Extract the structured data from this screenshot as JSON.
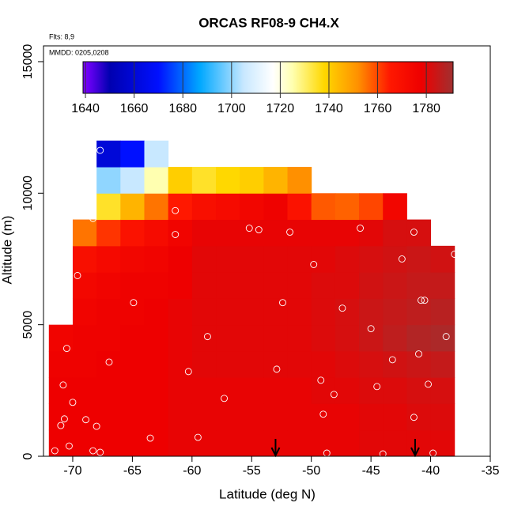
{
  "chart_data": {
    "type": "heatmap",
    "title": "ORCAS RF08-9 CH4.X",
    "note_flights": "Flts: 8,9",
    "note_dates": "MMDD: 0205,0208",
    "x_label": "Latitude (deg N)",
    "y_label": "Altitude (m)",
    "xlim": [
      -72.45,
      -35
    ],
    "ylim": [
      0,
      15600
    ],
    "xticks": [
      -70,
      -65,
      -60,
      -55,
      -50,
      -45,
      -40,
      -35
    ],
    "yticks": [
      0,
      5000,
      10000,
      15000
    ],
    "x_edges": [
      -72,
      -70,
      -68,
      -66,
      -64,
      -62,
      -60,
      -58,
      -56,
      -54,
      -52,
      -50,
      -48,
      -46,
      -44,
      -42,
      -40,
      -38
    ],
    "y_edges": [
      0,
      1000,
      2000,
      3000,
      4000,
      5000,
      6000,
      7000,
      8000,
      9000,
      10000,
      11000,
      12000
    ],
    "z": [
      [
        1778,
        1778,
        1778,
        1777,
        1776
      ],
      [
        1778,
        1778,
        1778,
        1777,
        1777,
        1776,
        1774,
        1770,
        1755
      ],
      [
        1778,
        1778,
        1778,
        1778,
        1777,
        1777,
        1776,
        1773,
        1762,
        1735,
        1700,
        1660
      ],
      [
        1778,
        1778,
        1778,
        1778,
        1778,
        1777,
        1777,
        1775,
        1768,
        1745,
        1705,
        1670
      ],
      [
        1778,
        1778,
        1778,
        1778,
        1778,
        1778,
        1777,
        1776,
        1772,
        1755,
        1725,
        1705
      ],
      [
        1779,
        1779,
        1779,
        1779,
        1779,
        1779,
        1778,
        1778,
        1776,
        1765,
        1740
      ],
      [
        1779,
        1779,
        1779,
        1780,
        1780,
        1780,
        1780,
        1780,
        1779,
        1770,
        1735
      ],
      [
        1779,
        1779,
        1779,
        1780,
        1780,
        1780,
        1780,
        1780,
        1779,
        1772,
        1738
      ],
      [
        1779,
        1779,
        1779,
        1780,
        1780,
        1780,
        1780,
        1780,
        1779,
        1775,
        1740
      ],
      [
        1779,
        1779,
        1779,
        1780,
        1780,
        1780,
        1780,
        1780,
        1779,
        1777,
        1745
      ],
      [
        1779,
        1779,
        1779,
        1780,
        1780,
        1780,
        1780,
        1780,
        1779,
        1768,
        1752
      ],
      [
        1779,
        1779,
        1780,
        1780,
        1781,
        1781,
        1781,
        1780,
        1779,
        1758
      ],
      [
        1779,
        1779,
        1780,
        1781,
        1782,
        1782,
        1781,
        1781,
        1779,
        1757
      ],
      [
        1780,
        1780,
        1781,
        1782,
        1784,
        1784,
        1783,
        1782,
        1780,
        1760
      ],
      [
        1780,
        1780,
        1781,
        1783,
        1786,
        1785,
        1784,
        1783,
        1782,
        1775
      ],
      [
        1780,
        1781,
        1782,
        1784,
        1788,
        1786,
        1785,
        1784,
        1782
      ],
      [
        1780,
        1781,
        1782,
        1785,
        1789,
        1787,
        1785,
        1783
      ]
    ],
    "clim": [
      1639,
      1791
    ],
    "colorbar_ticks": [
      1640,
      1660,
      1680,
      1700,
      1720,
      1740,
      1760,
      1780
    ],
    "colorscale": [
      {
        "value": 1640,
        "color": "#7a00ff"
      },
      {
        "value": 1650,
        "color": "#0000b0"
      },
      {
        "value": 1670,
        "color": "#0010ff"
      },
      {
        "value": 1687,
        "color": "#00a8ff"
      },
      {
        "value": 1705,
        "color": "#c8e8ff"
      },
      {
        "value": 1717,
        "color": "#ffffff"
      },
      {
        "value": 1725,
        "color": "#ffffb0"
      },
      {
        "value": 1738,
        "color": "#ffd800"
      },
      {
        "value": 1752,
        "color": "#ff9000"
      },
      {
        "value": 1765,
        "color": "#ff1800"
      },
      {
        "value": 1778,
        "color": "#ee0000"
      },
      {
        "value": 1791,
        "color": "#a03030"
      }
    ],
    "samples_x": [
      -67.7,
      -61.4,
      -61.4,
      -55.2,
      -54.4,
      -51.8,
      -45.9,
      -41.4,
      -39.6,
      -38.0,
      -42.4,
      -49.8,
      -68.3,
      -69.6,
      -70.3,
      -64.9,
      -52.4,
      -47.4,
      -40.8,
      -40.5,
      -45.0,
      -58.7,
      -38.7,
      -70.5,
      -66.95,
      -43.2,
      -41.0,
      -60.3,
      -52.9,
      -70.8,
      -49.2,
      -44.5,
      -40.2,
      -48.1,
      -57.3,
      -70.0,
      -49.0,
      -70.7,
      -68.9,
      -41.4,
      -68.0,
      -71.0,
      -63.5,
      -59.5,
      -70.3,
      -71.5,
      -68.3,
      -67.7,
      -48.7,
      -44.0,
      -39.8
    ],
    "samples_y": [
      11630,
      9340,
      8430,
      8670,
      8610,
      8520,
      8670,
      8520,
      8920,
      7680,
      7500,
      7290,
      9040,
      6870,
      5480,
      5840,
      5840,
      5630,
      5930,
      5930,
      4850,
      4550,
      4550,
      4100,
      3580,
      3670,
      3890,
      3220,
      3310,
      2710,
      2890,
      2650,
      2740,
      2350,
      2200,
      2050,
      1600,
      1420,
      1390,
      1480,
      1140,
      1170,
      690,
      720,
      390,
      210,
      210,
      150,
      120,
      90,
      120
    ],
    "arrows_x": [
      -53,
      -41.3
    ]
  }
}
